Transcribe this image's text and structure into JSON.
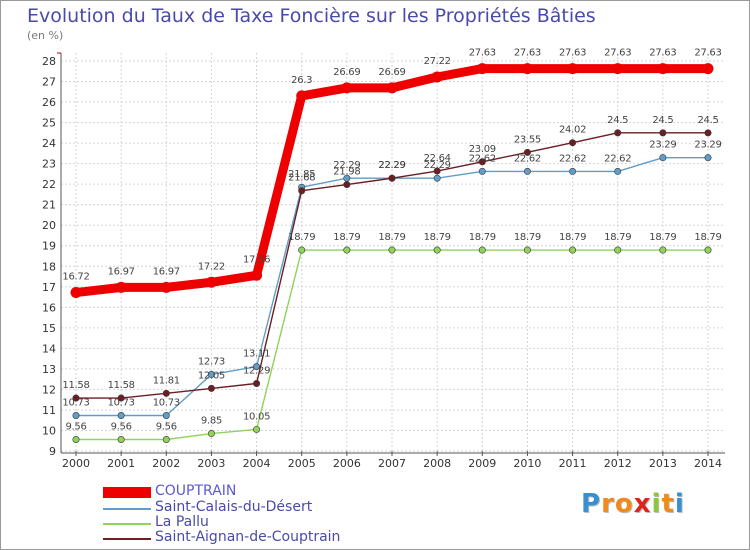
{
  "header": {
    "title": "Evolution du Taux de Taxe Foncière sur les Propriétés Bâties",
    "subtitle": "(en %)"
  },
  "chart_data": {
    "type": "line",
    "title": "Evolution du Taux de Taxe Foncière sur les Propriétés Bâties",
    "ylabel": "(en %)",
    "xlabel": "",
    "grid": true,
    "legend_position": "bottom-left",
    "ylim": [
      9,
      28
    ],
    "yticks": [
      "9",
      "10",
      "11",
      "12",
      "13",
      "14",
      "15",
      "16",
      "17",
      "18",
      "19",
      "20",
      "21",
      "22",
      "23",
      "24",
      "25",
      "26",
      "27",
      "28"
    ],
    "categories": [
      "2000",
      "2001",
      "2002",
      "2003",
      "2004",
      "2005",
      "2006",
      "2007",
      "2008",
      "2009",
      "2010",
      "2011",
      "2012",
      "2013",
      "2014"
    ],
    "series": [
      {
        "name": "COUPTRAIN",
        "color": "#ee0000",
        "values": [
          16.72,
          16.97,
          16.97,
          17.22,
          17.56,
          26.3,
          26.69,
          26.69,
          27.22,
          27.63,
          27.63,
          27.63,
          27.63,
          27.63,
          27.63
        ],
        "labels": [
          "16.72",
          "16.97",
          "16.97",
          "17.22",
          "17.56",
          "26.3",
          "26.69",
          "26.69",
          "27.22",
          "27.63",
          "27.63",
          "27.63",
          "27.63",
          "27.63",
          "27.63"
        ]
      },
      {
        "name": "Saint-Calais-du-Désert",
        "color": "#5f9ec8",
        "values": [
          10.73,
          10.73,
          10.73,
          12.73,
          13.11,
          21.85,
          22.29,
          22.29,
          22.29,
          22.62,
          22.62,
          22.62,
          22.62,
          23.29,
          23.29
        ],
        "labels": [
          "10.73",
          "10.73",
          "10.73",
          "12.73",
          "13.11",
          "21.85",
          "22.29",
          "22.29",
          "22.29",
          "22.62",
          "22.62",
          "22.62",
          "22.62",
          "23.29",
          "23.29"
        ]
      },
      {
        "name": "La Pallu",
        "color": "#8fd35a",
        "values": [
          9.56,
          9.56,
          9.56,
          9.85,
          10.05,
          18.79,
          18.79,
          18.79,
          18.79,
          18.79,
          18.79,
          18.79,
          18.79,
          18.79,
          18.79
        ],
        "labels": [
          "9.56",
          "9.56",
          "9.56",
          "9.85",
          "10.05",
          "18.79",
          "18.79",
          "18.79",
          "18.79",
          "18.79",
          "18.79",
          "18.79",
          "18.79",
          "18.79",
          "18.79"
        ]
      },
      {
        "name": "Saint-Aignan-de-Couptrain",
        "color": "#6b1e24",
        "values": [
          11.58,
          11.58,
          11.81,
          12.05,
          12.29,
          21.68,
          21.98,
          22.29,
          22.64,
          23.09,
          23.55,
          24.02,
          24.5,
          24.5,
          24.5
        ],
        "labels": [
          "11.58",
          "11.58",
          "11.81",
          "12.05",
          "12.29",
          "21.68",
          "21.98",
          "22.29",
          "22.64",
          "23.09",
          "23.55",
          "24.02",
          "24.5",
          "24.5",
          "24.5"
        ]
      }
    ]
  },
  "logo": {
    "letters": [
      "P",
      "r",
      "o",
      "x",
      "i",
      "t",
      "i"
    ],
    "colors": [
      "#3a8fd0",
      "#f08a1c",
      "#f08a1c",
      "#e0241d",
      "#8cc63f",
      "#f08a1c",
      "#3a8fd0"
    ]
  }
}
